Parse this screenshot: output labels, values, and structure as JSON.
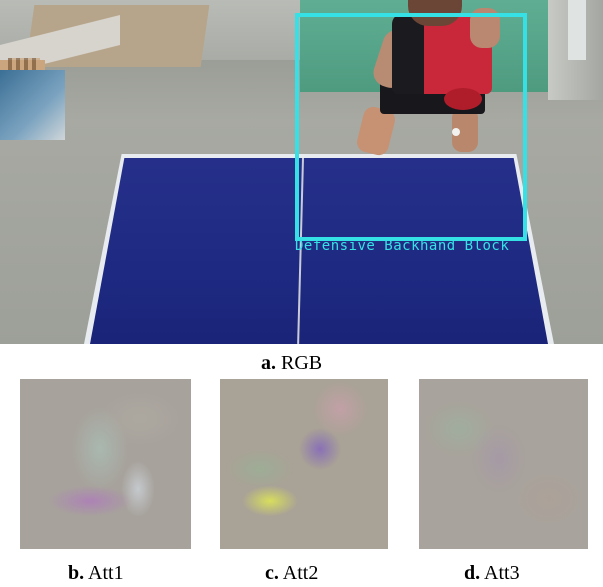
{
  "scene": {
    "bbox_label": "Defensive Backhand Block",
    "bbox_color": "#36e1e6"
  },
  "captions": {
    "a": {
      "letter": "a.",
      "text": "RGB"
    },
    "b": {
      "letter": "b.",
      "text": "Att1"
    },
    "c": {
      "letter": "c.",
      "text": "Att2"
    },
    "d": {
      "letter": "d.",
      "text": "Att3"
    }
  }
}
